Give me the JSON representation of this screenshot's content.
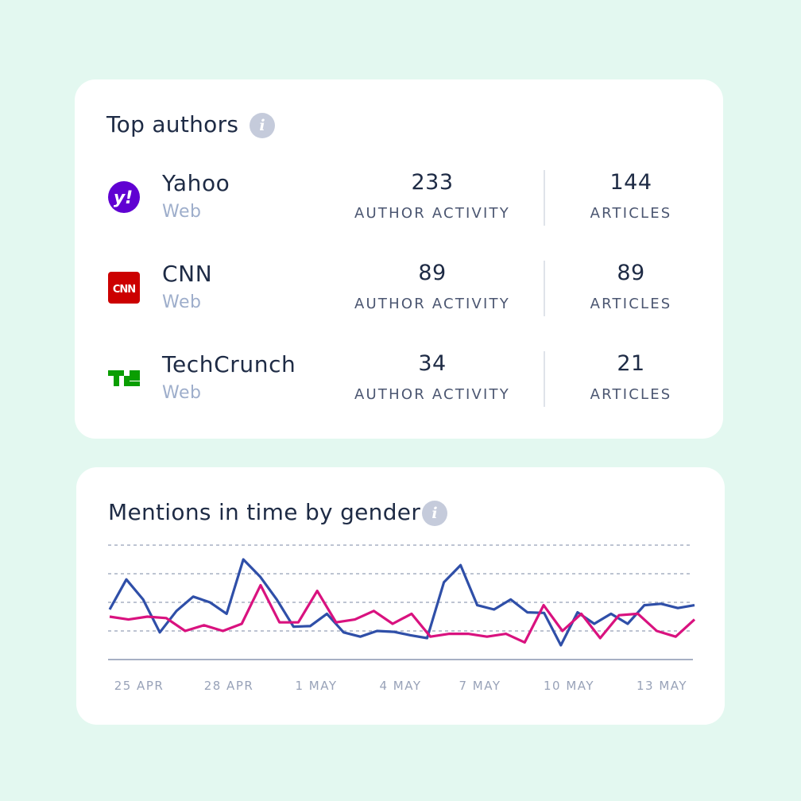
{
  "top_authors": {
    "title": "Top authors",
    "info_icon": "info-icon",
    "authors": [
      {
        "name": "Yahoo",
        "type": "Web",
        "author_activity": "233",
        "author_activity_label": "AUTHOR ACTIVITY",
        "articles": "144",
        "articles_label": "ARTICLES",
        "logo_icon": "yahoo-logo-icon",
        "logo_text": "y!",
        "logo_color": "#6001d2"
      },
      {
        "name": "CNN",
        "type": "Web",
        "author_activity": "89",
        "author_activity_label": "AUTHOR ACTIVITY",
        "articles": "89",
        "articles_label": "ARTICLES",
        "logo_icon": "cnn-logo-icon",
        "logo_text": "CNN",
        "logo_color": "#cc0000"
      },
      {
        "name": "TechCrunch",
        "type": "Web",
        "author_activity": "34",
        "author_activity_label": "AUTHOR ACTIVITY",
        "articles": "21",
        "articles_label": "ARTICLES",
        "logo_icon": "techcrunch-logo-icon",
        "logo_text": "TC",
        "logo_color": "#0a9e01"
      }
    ]
  },
  "mentions": {
    "title": "Mentions in time by gender",
    "info_icon": "info-icon"
  },
  "chart_data": {
    "type": "line",
    "title": "Mentions in time by gender",
    "xlabel": "",
    "ylabel": "",
    "grid": true,
    "legend": "none",
    "x_ticks": [
      "25 APR",
      "28 APR",
      "1 MAY",
      "4 MAY",
      "7 MAY",
      "10 MAY",
      "13 MAY"
    ],
    "ylim": [
      0,
      4
    ],
    "series": [
      {
        "color": "#2f4fa8",
        "values": [
          1.75,
          2.8,
          2.1,
          0.95,
          1.7,
          2.2,
          2.0,
          1.6,
          3.5,
          2.9,
          2.1,
          1.15,
          1.17,
          1.6,
          0.95,
          0.8,
          1.0,
          0.97,
          0.85,
          0.75,
          2.7,
          3.3,
          1.9,
          1.75,
          2.1,
          1.65,
          1.63,
          0.5,
          1.65,
          1.25,
          1.6,
          1.25,
          1.9,
          1.95,
          1.8,
          1.9
        ]
      },
      {
        "color": "#d9127f",
        "values": [
          1.5,
          1.4,
          1.5,
          1.45,
          1.0,
          1.2,
          1.0,
          1.25,
          2.6,
          1.3,
          1.3,
          2.4,
          1.3,
          1.4,
          1.7,
          1.25,
          1.6,
          0.8,
          0.9,
          0.9,
          0.8,
          0.9,
          0.6,
          1.9,
          1.0,
          1.6,
          0.75,
          1.55,
          1.6,
          1.0,
          0.8,
          1.4
        ]
      }
    ]
  }
}
